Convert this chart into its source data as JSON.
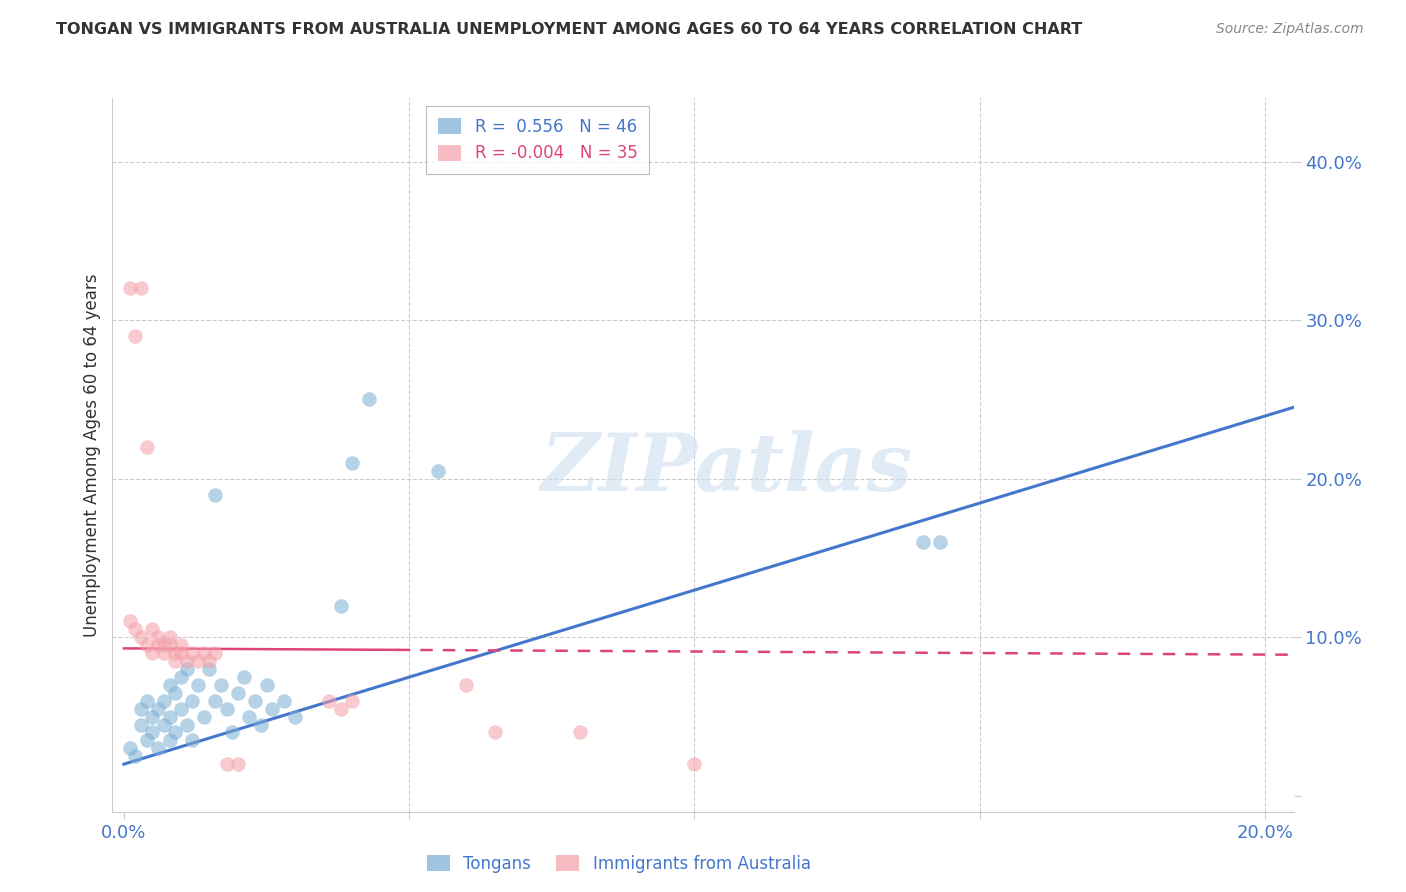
{
  "title": "TONGAN VS IMMIGRANTS FROM AUSTRALIA UNEMPLOYMENT AMONG AGES 60 TO 64 YEARS CORRELATION CHART",
  "source": "Source: ZipAtlas.com",
  "ylabel": "Unemployment Among Ages 60 to 64 years",
  "xlim": [
    -0.002,
    0.205
  ],
  "ylim": [
    -0.01,
    0.44
  ],
  "xtick_positions": [
    0.0,
    0.05,
    0.1,
    0.15,
    0.2
  ],
  "xtick_labels": [
    "0.0%",
    "",
    "",
    "",
    "20.0%"
  ],
  "ytick_positions": [
    0.0,
    0.1,
    0.2,
    0.3,
    0.4
  ],
  "ytick_labels": [
    "",
    "10.0%",
    "20.0%",
    "30.0%",
    "40.0%"
  ],
  "blue_scatter": [
    [
      0.001,
      0.03
    ],
    [
      0.002,
      0.025
    ],
    [
      0.003,
      0.045
    ],
    [
      0.003,
      0.055
    ],
    [
      0.004,
      0.035
    ],
    [
      0.004,
      0.06
    ],
    [
      0.005,
      0.04
    ],
    [
      0.005,
      0.05
    ],
    [
      0.006,
      0.03
    ],
    [
      0.006,
      0.055
    ],
    [
      0.007,
      0.045
    ],
    [
      0.007,
      0.06
    ],
    [
      0.008,
      0.035
    ],
    [
      0.008,
      0.05
    ],
    [
      0.008,
      0.07
    ],
    [
      0.009,
      0.04
    ],
    [
      0.009,
      0.065
    ],
    [
      0.01,
      0.055
    ],
    [
      0.01,
      0.075
    ],
    [
      0.011,
      0.045
    ],
    [
      0.011,
      0.08
    ],
    [
      0.012,
      0.06
    ],
    [
      0.012,
      0.035
    ],
    [
      0.013,
      0.07
    ],
    [
      0.014,
      0.05
    ],
    [
      0.015,
      0.08
    ],
    [
      0.016,
      0.06
    ],
    [
      0.016,
      0.19
    ],
    [
      0.017,
      0.07
    ],
    [
      0.018,
      0.055
    ],
    [
      0.019,
      0.04
    ],
    [
      0.02,
      0.065
    ],
    [
      0.021,
      0.075
    ],
    [
      0.022,
      0.05
    ],
    [
      0.023,
      0.06
    ],
    [
      0.024,
      0.045
    ],
    [
      0.025,
      0.07
    ],
    [
      0.026,
      0.055
    ],
    [
      0.028,
      0.06
    ],
    [
      0.03,
      0.05
    ],
    [
      0.038,
      0.12
    ],
    [
      0.04,
      0.21
    ],
    [
      0.043,
      0.25
    ],
    [
      0.055,
      0.205
    ],
    [
      0.14,
      0.16
    ],
    [
      0.143,
      0.16
    ]
  ],
  "pink_scatter": [
    [
      0.001,
      0.32
    ],
    [
      0.003,
      0.32
    ],
    [
      0.002,
      0.29
    ],
    [
      0.004,
      0.22
    ],
    [
      0.001,
      0.11
    ],
    [
      0.002,
      0.105
    ],
    [
      0.003,
      0.1
    ],
    [
      0.004,
      0.095
    ],
    [
      0.005,
      0.105
    ],
    [
      0.006,
      0.095
    ],
    [
      0.005,
      0.09
    ],
    [
      0.006,
      0.1
    ],
    [
      0.007,
      0.095
    ],
    [
      0.007,
      0.09
    ],
    [
      0.008,
      0.1
    ],
    [
      0.008,
      0.095
    ],
    [
      0.009,
      0.09
    ],
    [
      0.009,
      0.085
    ],
    [
      0.01,
      0.095
    ],
    [
      0.01,
      0.09
    ],
    [
      0.011,
      0.085
    ],
    [
      0.012,
      0.09
    ],
    [
      0.013,
      0.085
    ],
    [
      0.014,
      0.09
    ],
    [
      0.015,
      0.085
    ],
    [
      0.016,
      0.09
    ],
    [
      0.018,
      0.02
    ],
    [
      0.02,
      0.02
    ],
    [
      0.036,
      0.06
    ],
    [
      0.038,
      0.055
    ],
    [
      0.04,
      0.06
    ],
    [
      0.06,
      0.07
    ],
    [
      0.065,
      0.04
    ],
    [
      0.08,
      0.04
    ],
    [
      0.1,
      0.02
    ]
  ],
  "blue_line_x": [
    0.0,
    0.205
  ],
  "blue_line_y": [
    0.02,
    0.245
  ],
  "pink_line_solid_end": 0.048,
  "pink_line_x_start": 0.0,
  "pink_line_x_end": 0.205,
  "pink_line_y_start": 0.093,
  "pink_line_y_end": 0.089,
  "watermark": "ZIPatlas",
  "bg_color": "#ffffff",
  "blue_color": "#7aadd4",
  "pink_color": "#f4a0a8",
  "blue_line_color": "#4477cc",
  "pink_line_color": "#dd4477",
  "grid_color": "#cccccc",
  "axis_label_color": "#4477cc",
  "title_color": "#333333",
  "source_color": "#888888"
}
